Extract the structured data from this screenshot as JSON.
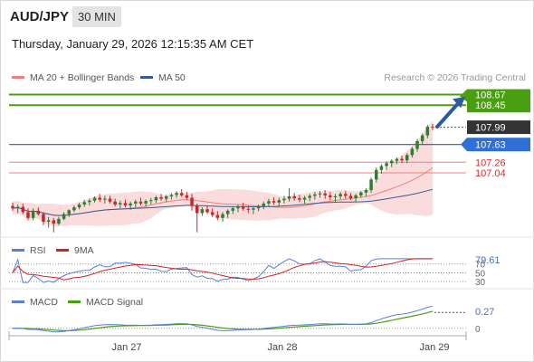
{
  "header": {
    "symbol": "AUD/JPY",
    "timeframe": "30 MIN",
    "timestamp": "Thursday, January 29, 2026 12:15:35 AM CET"
  },
  "legend": {
    "bollinger": "MA 20 + Bollinger Bands",
    "ma50": "MA 50",
    "rsi": "RSI",
    "rsi_ma": "9MA",
    "macd": "MACD",
    "macd_signal": "MACD Signal"
  },
  "credit": "Research © 2026 Trading Central",
  "colors": {
    "bollinger": "#f08080",
    "ma50": "#3a5a95",
    "target_line": "#4a9e12",
    "pivot_line": "#3a5a95",
    "support_line": "#f08080",
    "arrow": "#2c5aa0",
    "candle_up": "#2e7d32",
    "candle_down": "#c62828",
    "rsi": "#5b7fd6",
    "rsi_ma": "#d62020",
    "macd": "#5b7fd6",
    "macd_signal": "#4a9e12"
  },
  "chart_data": [
    {
      "type": "candlestick",
      "ylim": [
        105.7,
        108.85
      ],
      "x_ticks": [
        "Jan 27",
        "Jan 28",
        "Jan 29"
      ],
      "candles": [
        [
          106.35,
          106.42,
          106.25,
          106.3
        ],
        [
          106.3,
          106.38,
          106.2,
          106.33
        ],
        [
          106.33,
          106.4,
          106.18,
          106.22
        ],
        [
          106.22,
          106.3,
          106.05,
          106.1
        ],
        [
          106.1,
          106.3,
          106.05,
          106.25
        ],
        [
          106.25,
          106.32,
          106.15,
          106.18
        ],
        [
          106.18,
          106.22,
          105.95,
          106.02
        ],
        [
          106.02,
          106.12,
          105.9,
          106.05
        ],
        [
          106.05,
          106.1,
          105.8,
          105.98
        ],
        [
          105.98,
          106.12,
          105.95,
          106.08
        ],
        [
          106.08,
          106.22,
          106.05,
          106.18
        ],
        [
          106.18,
          106.28,
          106.12,
          106.26
        ],
        [
          106.26,
          106.36,
          106.22,
          106.32
        ],
        [
          106.32,
          106.42,
          106.28,
          106.38
        ],
        [
          106.38,
          106.48,
          106.33,
          106.43
        ],
        [
          106.43,
          106.5,
          106.36,
          106.46
        ],
        [
          106.46,
          106.55,
          106.42,
          106.52
        ],
        [
          106.52,
          106.6,
          106.44,
          106.48
        ],
        [
          106.48,
          106.56,
          106.4,
          106.5
        ],
        [
          106.5,
          106.56,
          106.4,
          106.44
        ],
        [
          106.44,
          106.5,
          106.34,
          106.38
        ],
        [
          106.38,
          106.46,
          106.3,
          106.41
        ],
        [
          106.41,
          106.48,
          106.32,
          106.36
        ],
        [
          106.36,
          106.44,
          106.27,
          106.4
        ],
        [
          106.4,
          106.48,
          106.32,
          106.44
        ],
        [
          106.44,
          106.52,
          106.36,
          106.4
        ],
        [
          106.4,
          106.48,
          106.33,
          106.45
        ],
        [
          106.45,
          106.52,
          106.38,
          106.47
        ],
        [
          106.47,
          106.56,
          106.41,
          106.53
        ],
        [
          106.53,
          106.6,
          106.46,
          106.5
        ],
        [
          106.5,
          106.58,
          106.43,
          106.55
        ],
        [
          106.55,
          106.62,
          106.48,
          106.58
        ],
        [
          106.58,
          106.66,
          106.52,
          106.62
        ],
        [
          106.62,
          106.7,
          106.54,
          106.57
        ],
        [
          106.57,
          106.64,
          106.48,
          106.52
        ],
        [
          106.52,
          106.6,
          106.25,
          106.35
        ],
        [
          106.35,
          106.4,
          105.8,
          106.2
        ],
        [
          106.2,
          106.32,
          106.14,
          106.28
        ],
        [
          106.28,
          106.34,
          106.18,
          106.22
        ],
        [
          106.22,
          106.3,
          106.12,
          106.16
        ],
        [
          106.16,
          106.24,
          106.05,
          106.1
        ],
        [
          106.1,
          106.22,
          106.02,
          106.18
        ],
        [
          106.18,
          106.28,
          106.1,
          106.25
        ],
        [
          106.25,
          106.34,
          106.18,
          106.3
        ],
        [
          106.3,
          106.38,
          106.22,
          106.34
        ],
        [
          106.34,
          106.42,
          106.25,
          106.29
        ],
        [
          106.29,
          106.36,
          106.2,
          106.27
        ],
        [
          106.27,
          106.34,
          106.18,
          106.3
        ],
        [
          106.3,
          106.38,
          106.24,
          106.35
        ],
        [
          106.35,
          106.44,
          106.28,
          106.4
        ],
        [
          106.4,
          106.5,
          106.33,
          106.45
        ],
        [
          106.45,
          106.53,
          106.37,
          106.42
        ],
        [
          106.42,
          106.52,
          106.35,
          106.47
        ],
        [
          106.47,
          106.56,
          106.4,
          106.5
        ],
        [
          106.5,
          106.72,
          106.44,
          106.55
        ],
        [
          106.55,
          106.62,
          106.46,
          106.51
        ],
        [
          106.51,
          106.58,
          106.43,
          106.48
        ],
        [
          106.48,
          106.56,
          106.4,
          106.52
        ],
        [
          106.52,
          106.6,
          106.45,
          106.56
        ],
        [
          106.56,
          106.64,
          106.48,
          106.59
        ],
        [
          106.59,
          106.66,
          106.52,
          106.61
        ],
        [
          106.61,
          106.68,
          106.5,
          106.57
        ],
        [
          106.57,
          106.64,
          106.47,
          106.53
        ],
        [
          106.53,
          106.6,
          106.42,
          106.55
        ],
        [
          106.55,
          106.64,
          106.49,
          106.6
        ],
        [
          106.6,
          106.66,
          106.5,
          106.56
        ],
        [
          106.56,
          106.62,
          106.47,
          106.51
        ],
        [
          106.51,
          106.6,
          106.44,
          106.57
        ],
        [
          106.57,
          106.66,
          106.52,
          106.63
        ],
        [
          106.63,
          106.72,
          106.55,
          106.68
        ],
        [
          106.68,
          106.94,
          106.62,
          106.9
        ],
        [
          106.9,
          107.15,
          106.84,
          107.1
        ],
        [
          107.1,
          107.22,
          107.02,
          107.18
        ],
        [
          107.18,
          107.28,
          107.1,
          107.24
        ],
        [
          107.24,
          107.32,
          107.16,
          107.29
        ],
        [
          107.29,
          107.36,
          107.22,
          107.33
        ],
        [
          107.33,
          107.4,
          107.25,
          107.3
        ],
        [
          107.3,
          107.45,
          107.24,
          107.41
        ],
        [
          107.41,
          107.58,
          107.36,
          107.54
        ],
        [
          107.54,
          107.74,
          107.48,
          107.7
        ],
        [
          107.7,
          107.86,
          107.64,
          107.82
        ],
        [
          107.82,
          108.04,
          107.76,
          108.0
        ],
        [
          108.0,
          108.06,
          107.93,
          107.99
        ]
      ]
    },
    {
      "type": "horizontal_levels",
      "levels": [
        {
          "value": 108.67,
          "label": "108.67",
          "role": "target"
        },
        {
          "value": 108.45,
          "label": "108.45",
          "role": "target"
        },
        {
          "value": 107.99,
          "label": "107.99",
          "role": "last"
        },
        {
          "value": 107.63,
          "label": "107.63",
          "role": "pivot"
        },
        {
          "value": 107.26,
          "label": "107.26",
          "role": "support"
        },
        {
          "value": 107.04,
          "label": "107.04",
          "role": "support"
        }
      ]
    },
    {
      "type": "line",
      "title": "RSI",
      "series_names": [
        "RSI",
        "9MA"
      ],
      "reference_levels": [
        70,
        50,
        30
      ],
      "last_value": "79.61"
    },
    {
      "type": "line",
      "title": "MACD",
      "series_names": [
        "MACD",
        "MACD Signal"
      ],
      "reference_levels": [
        0
      ],
      "last_value": "0.27"
    }
  ],
  "rsi_ticks": [
    "70",
    "50",
    "30"
  ],
  "macd_zero": "0"
}
